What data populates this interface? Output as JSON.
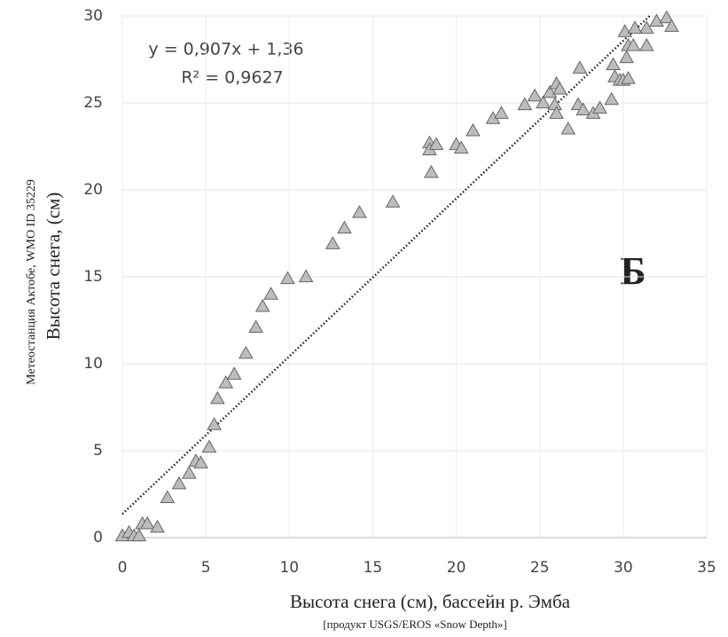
{
  "chart_data": {
    "type": "scatter",
    "x_label": "Высота снега  (см), бассейн р. Эмба",
    "x_sublabel": "[продукт USGS/EROS  «Snow Depth»]",
    "y_label": "Высота снега,  (см)",
    "y_sublabel": "Метеостанция Актобе, WMO ID 35229",
    "annotations": [
      "y = 0,907x + 1,36",
      "R² = 0,9627",
      "Б"
    ],
    "xlim": [
      0,
      35
    ],
    "xticks": [
      0,
      5,
      10,
      15,
      20,
      25,
      30,
      35
    ],
    "ylim": [
      0,
      30
    ],
    "yticks": [
      0,
      5,
      10,
      15,
      20,
      25,
      30
    ],
    "grid": true,
    "color": "#bdbdbd",
    "trendline": {
      "x": [
        0,
        31.6
      ],
      "y": [
        1.36,
        30.02
      ]
    },
    "x": [
      0,
      0.4,
      0.7,
      1,
      1.2,
      1.5,
      2.1,
      2.7,
      3.4,
      4,
      4.4,
      4.7,
      5.2,
      5.5,
      5.7,
      6.2,
      6.7,
      7.4,
      8,
      8.4,
      8.9,
      9.9,
      11,
      12.6,
      13.3,
      14.2,
      16.2,
      18.4,
      18.4,
      18.5,
      18.8,
      20,
      20.3,
      21,
      22.2,
      22.7,
      24.1,
      24.7,
      25.2,
      25.6,
      25.9,
      26,
      26.2,
      26,
      26.7,
      27.4,
      27.3,
      27.6,
      28.2,
      28.6,
      29.3,
      29.4,
      29.5,
      29.8,
      30,
      30.3,
      30.2,
      30.3,
      30.6,
      31.4,
      31.4,
      32,
      32.6,
      32.9,
      30.1,
      30.7
    ],
    "values": [
      0.1,
      0.3,
      0.1,
      0.1,
      0.8,
      0.8,
      0.6,
      2.3,
      3.1,
      3.7,
      4.4,
      4.3,
      5.2,
      6.5,
      8,
      8.9,
      9.4,
      10.6,
      12.1,
      13.3,
      14,
      14.9,
      15,
      16.9,
      17.8,
      18.7,
      19.3,
      22.7,
      22.3,
      21,
      22.6,
      22.6,
      22.4,
      23.4,
      24.1,
      24.4,
      24.9,
      25.4,
      25,
      25.6,
      24.9,
      26.1,
      25.8,
      24.4,
      23.5,
      27,
      24.9,
      24.6,
      24.4,
      24.7,
      25.2,
      27.2,
      26.5,
      26.3,
      26.3,
      26.4,
      27.6,
      28.3,
      28.3,
      28.3,
      29.3,
      29.7,
      29.9,
      29.4,
      29.1,
      29.3
    ]
  }
}
